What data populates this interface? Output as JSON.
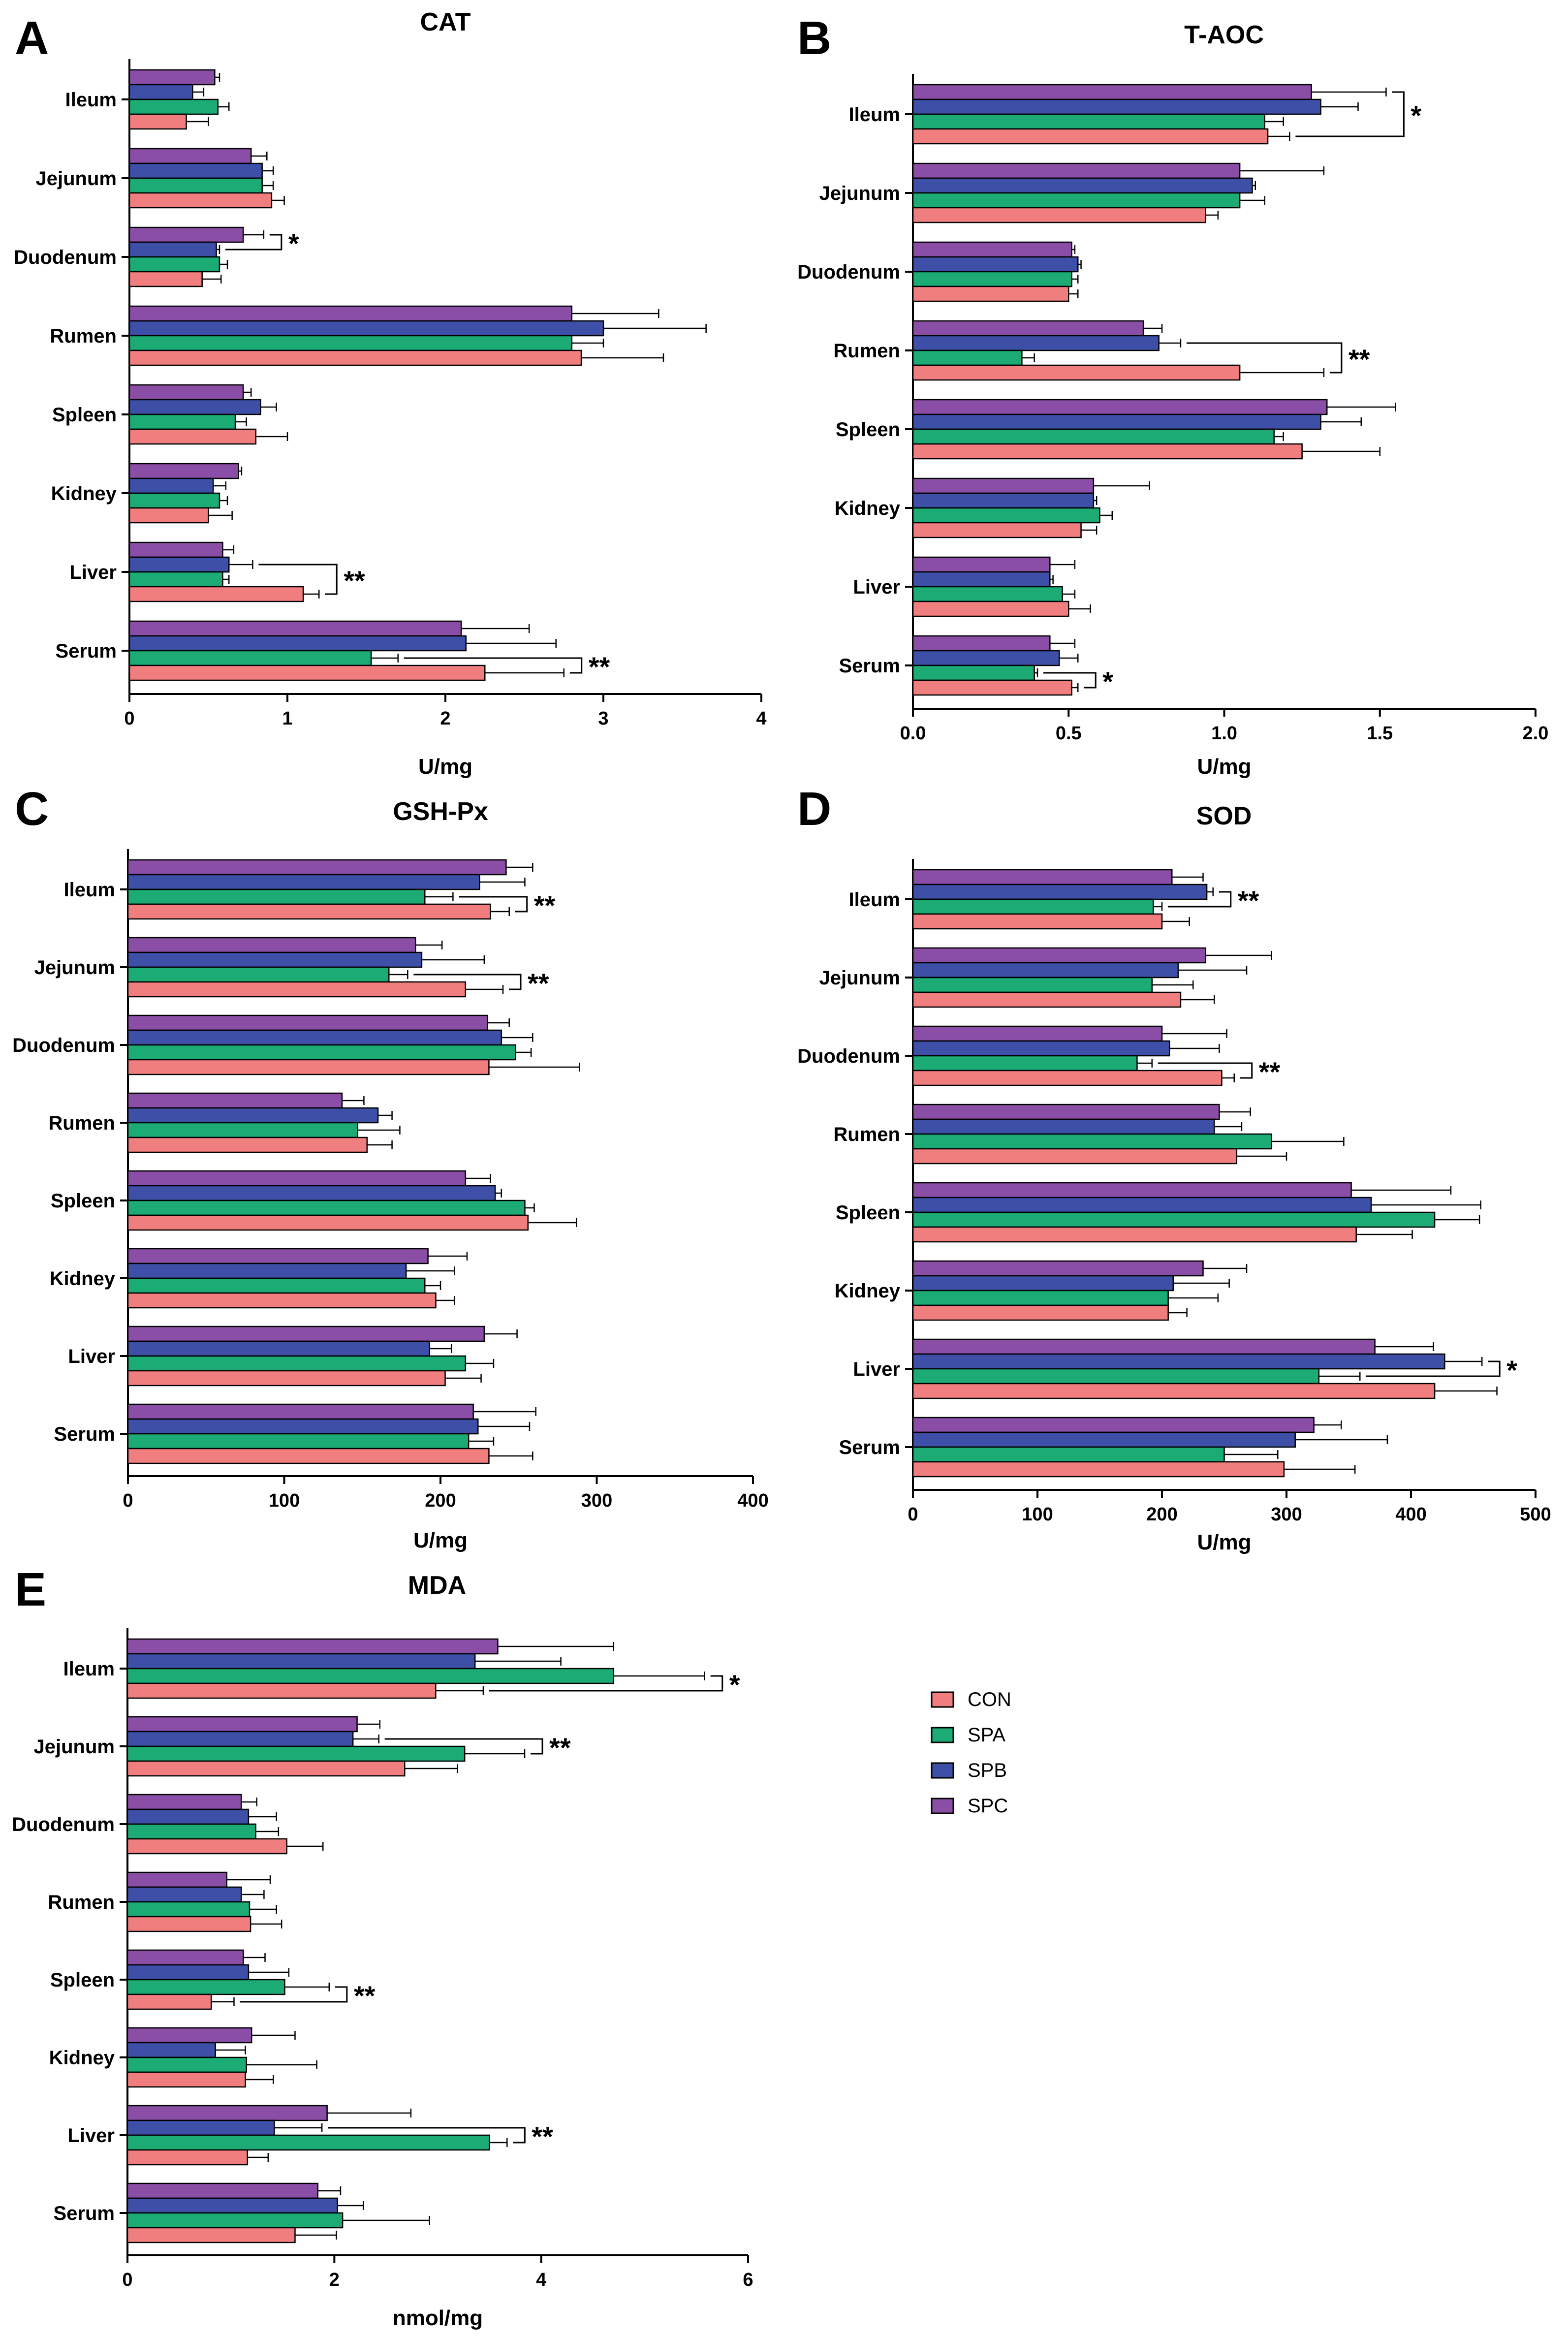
{
  "series": [
    "CON",
    "SPA",
    "SPB",
    "SPC"
  ],
  "colors": {
    "CON": "#f07e7e",
    "SPA": "#1cab74",
    "SPB": "#3d4fa6",
    "SPC": "#8a4ea6"
  },
  "legend": {
    "items": [
      "CON",
      "SPA",
      "SPB",
      "SPC"
    ]
  },
  "chart_data": [
    {
      "panel": "A",
      "title": "CAT",
      "type": "bar",
      "orientation": "horizontal",
      "xlabel": "U/mg",
      "xlim": [
        0,
        4
      ],
      "xticks": [
        "0",
        "1",
        "2",
        "3",
        "4"
      ],
      "categories": [
        "Ileum",
        "Jejunum",
        "Duodenum",
        "Rumen",
        "Spleen",
        "Kidney",
        "Liver",
        "Serum"
      ],
      "series": [
        {
          "name": "CON",
          "values": [
            0.36,
            0.9,
            0.46,
            2.86,
            0.8,
            0.5,
            1.1,
            2.25
          ],
          "errors": [
            0.14,
            0.08,
            0.12,
            0.52,
            0.2,
            0.15,
            0.1,
            0.5
          ]
        },
        {
          "name": "SPA",
          "values": [
            0.56,
            0.84,
            0.57,
            2.8,
            0.67,
            0.57,
            0.59,
            1.53
          ],
          "errors": [
            0.07,
            0.07,
            0.05,
            0.2,
            0.07,
            0.05,
            0.04,
            0.17
          ]
        },
        {
          "name": "SPB",
          "values": [
            0.4,
            0.84,
            0.55,
            3.0,
            0.83,
            0.53,
            0.63,
            2.13
          ],
          "errors": [
            0.07,
            0.07,
            0.02,
            0.65,
            0.1,
            0.08,
            0.15,
            0.57
          ]
        },
        {
          "name": "SPC",
          "values": [
            0.54,
            0.77,
            0.72,
            2.8,
            0.72,
            0.69,
            0.59,
            2.1
          ],
          "errors": [
            0.03,
            0.1,
            0.13,
            0.55,
            0.05,
            0.02,
            0.07,
            0.43
          ]
        }
      ],
      "annotations": [
        {
          "category": "Duodenum",
          "text": "*",
          "from": "SPC",
          "to": "SPB"
        },
        {
          "category": "Liver",
          "text": "**",
          "from": "CON",
          "to": "SPB"
        },
        {
          "category": "Serum",
          "text": "**",
          "from": "CON",
          "to": "SPA"
        }
      ]
    },
    {
      "panel": "B",
      "title": "T-AOC",
      "type": "bar",
      "orientation": "horizontal",
      "xlabel": "U/mg",
      "xlim": [
        0,
        2
      ],
      "xticks": [
        "0.0",
        "0.5",
        "1.0",
        "1.5",
        "2.0"
      ],
      "categories": [
        "Ileum",
        "Jejunum",
        "Duodenum",
        "Rumen",
        "Spleen",
        "Kidney",
        "Liver",
        "Serum"
      ],
      "series": [
        {
          "name": "CON",
          "values": [
            1.14,
            0.94,
            0.5,
            1.05,
            1.25,
            0.54,
            0.5,
            0.51
          ],
          "errors": [
            0.07,
            0.04,
            0.03,
            0.27,
            0.25,
            0.05,
            0.07,
            0.02
          ]
        },
        {
          "name": "SPA",
          "values": [
            1.13,
            1.05,
            0.51,
            0.35,
            1.16,
            0.6,
            0.48,
            0.39
          ],
          "errors": [
            0.06,
            0.08,
            0.02,
            0.04,
            0.03,
            0.04,
            0.04,
            0.01
          ]
        },
        {
          "name": "SPB",
          "values": [
            1.31,
            1.09,
            0.53,
            0.79,
            1.31,
            0.58,
            0.44,
            0.47
          ],
          "errors": [
            0.12,
            0.01,
            0.01,
            0.07,
            0.13,
            0.01,
            0.01,
            0.06
          ]
        },
        {
          "name": "SPC",
          "values": [
            1.28,
            1.05,
            0.51,
            0.74,
            1.33,
            0.58,
            0.44,
            0.44
          ],
          "errors": [
            0.24,
            0.27,
            0.01,
            0.06,
            0.22,
            0.18,
            0.08,
            0.08
          ]
        }
      ],
      "annotations": [
        {
          "category": "Ileum",
          "text": "*",
          "from": "CON",
          "to": "SPC"
        },
        {
          "category": "Rumen",
          "text": "**",
          "from": "CON",
          "to": "SPB"
        },
        {
          "category": "Serum",
          "text": "*",
          "from": "CON",
          "to": "SPA"
        }
      ]
    },
    {
      "panel": "C",
      "title": "GSH-Px",
      "type": "bar",
      "orientation": "horizontal",
      "xlabel": "U/mg",
      "xlim": [
        0,
        400
      ],
      "xticks": [
        "0",
        "100",
        "200",
        "300",
        "400"
      ],
      "categories": [
        "Ileum",
        "Jejunum",
        "Duodenum",
        "Rumen",
        "Spleen",
        "Kidney",
        "Liver",
        "Serum"
      ],
      "series": [
        {
          "name": "CON",
          "values": [
            232,
            216,
            231,
            153,
            256,
            197,
            203,
            231
          ],
          "errors": [
            12,
            24,
            58,
            16,
            31,
            12,
            23,
            28
          ]
        },
        {
          "name": "SPA",
          "values": [
            190,
            167,
            248,
            147,
            254,
            190,
            216,
            218
          ],
          "errors": [
            18,
            12,
            10,
            27,
            6,
            10,
            18,
            16
          ]
        },
        {
          "name": "SPB",
          "values": [
            225,
            188,
            239,
            160,
            235,
            178,
            193,
            224
          ],
          "errors": [
            29,
            40,
            20,
            9,
            4,
            31,
            14,
            33
          ]
        },
        {
          "name": "SPC",
          "values": [
            242,
            184,
            230,
            137,
            216,
            192,
            228,
            221
          ],
          "errors": [
            17,
            17,
            14,
            14,
            16,
            25,
            21,
            40
          ]
        }
      ],
      "annotations": [
        {
          "category": "Ileum",
          "text": "**",
          "from": "CON",
          "to": "SPA"
        },
        {
          "category": "Jejunum",
          "text": "**",
          "from": "CON",
          "to": "SPA"
        }
      ]
    },
    {
      "panel": "D",
      "title": "SOD",
      "type": "bar",
      "orientation": "horizontal",
      "xlabel": "U/mg",
      "xlim": [
        0,
        500
      ],
      "xticks": [
        "0",
        "100",
        "200",
        "300",
        "400",
        "500"
      ],
      "categories": [
        "Ileum",
        "Jejunum",
        "Duodenum",
        "Rumen",
        "Spleen",
        "Kidney",
        "Liver",
        "Serum"
      ],
      "series": [
        {
          "name": "CON",
          "values": [
            200,
            215,
            248,
            260,
            356,
            205,
            419,
            298
          ],
          "errors": [
            22,
            27,
            10,
            40,
            45,
            15,
            50,
            57
          ]
        },
        {
          "name": "SPA",
          "values": [
            193,
            192,
            180,
            288,
            419,
            205,
            326,
            250
          ],
          "errors": [
            7,
            33,
            12,
            58,
            36,
            40,
            33,
            43
          ]
        },
        {
          "name": "SPB",
          "values": [
            236,
            213,
            206,
            242,
            368,
            209,
            427,
            307
          ],
          "errors": [
            5,
            55,
            40,
            22,
            88,
            45,
            30,
            74
          ]
        },
        {
          "name": "SPC",
          "values": [
            208,
            235,
            200,
            246,
            352,
            233,
            371,
            322
          ],
          "errors": [
            25,
            53,
            52,
            25,
            80,
            35,
            47,
            22
          ]
        }
      ],
      "annotations": [
        {
          "category": "Ileum",
          "text": "**",
          "from": "SPB",
          "to": "SPA"
        },
        {
          "category": "Duodenum",
          "text": "**",
          "from": "CON",
          "to": "SPA"
        },
        {
          "category": "Liver",
          "text": "*",
          "from": "SPB",
          "to": "SPA"
        }
      ]
    },
    {
      "panel": "E",
      "title": "MDA",
      "type": "bar",
      "orientation": "horizontal",
      "xlabel": "nmol/mg",
      "xlim": [
        0,
        6
      ],
      "xticks": [
        "0",
        "2",
        "4",
        "6"
      ],
      "categories": [
        "Ileum",
        "Jejunum",
        "Duodenum",
        "Rumen",
        "Spleen",
        "Kidney",
        "Liver",
        "Serum"
      ],
      "series": [
        {
          "name": "CON",
          "values": [
            2.98,
            2.68,
            1.54,
            1.19,
            0.81,
            1.14,
            1.16,
            1.62
          ],
          "errors": [
            0.46,
            0.51,
            0.35,
            0.3,
            0.22,
            0.27,
            0.2,
            0.4
          ]
        },
        {
          "name": "SPA",
          "values": [
            4.7,
            3.26,
            1.24,
            1.18,
            1.52,
            1.15,
            3.5,
            2.08
          ],
          "errors": [
            0.88,
            0.58,
            0.22,
            0.26,
            0.43,
            0.68,
            0.17,
            0.84
          ]
        },
        {
          "name": "SPB",
          "values": [
            3.36,
            2.18,
            1.17,
            1.1,
            1.17,
            0.85,
            1.42,
            2.03
          ],
          "errors": [
            0.83,
            0.25,
            0.27,
            0.22,
            0.39,
            0.29,
            0.46,
            0.25
          ]
        },
        {
          "name": "SPC",
          "values": [
            3.58,
            2.22,
            1.1,
            0.96,
            1.12,
            1.2,
            1.93,
            1.84
          ],
          "errors": [
            1.12,
            0.22,
            0.15,
            0.42,
            0.21,
            0.42,
            0.81,
            0.22
          ]
        }
      ],
      "annotations": [
        {
          "category": "Ileum",
          "text": "*",
          "from": "CON",
          "to": "SPA"
        },
        {
          "category": "Jejunum",
          "text": "**",
          "from": "SPB",
          "to": "SPA"
        },
        {
          "category": "Spleen",
          "text": "**",
          "from": "CON",
          "to": "SPA"
        },
        {
          "category": "Liver",
          "text": "**",
          "from": "SPB",
          "to": "SPA"
        }
      ]
    }
  ]
}
